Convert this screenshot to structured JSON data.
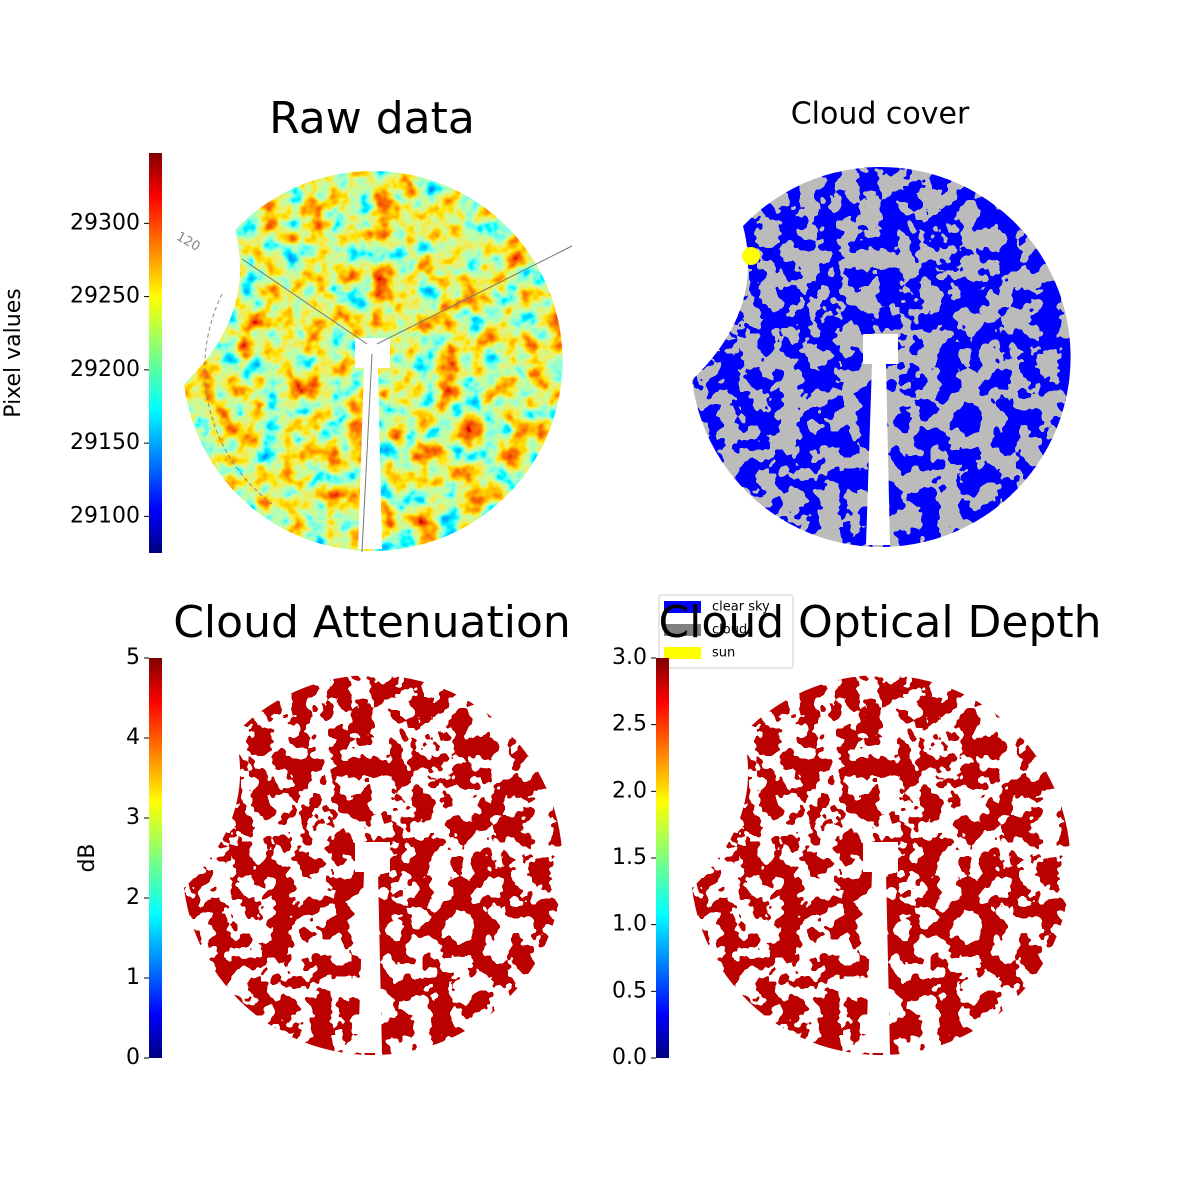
{
  "chart_data": [
    {
      "type": "image",
      "title": "Raw data",
      "colormap": "jet",
      "ylabel": "Pixel values",
      "ylim": [
        29075,
        29348
      ],
      "yticks": [
        29100,
        29150,
        29200,
        29250,
        29300
      ],
      "annotations": [
        "120"
      ]
    },
    {
      "type": "image",
      "title": "Cloud cover",
      "legend": [
        {
          "name": "clear sky",
          "color": "#0000ff"
        },
        {
          "name": "cloud",
          "color": "#808080"
        },
        {
          "name": "sun",
          "color": "#ffff00"
        }
      ]
    },
    {
      "type": "image",
      "title": "Cloud Attenuation",
      "colormap": "jet",
      "ylabel": "dB",
      "ylim": [
        0,
        5
      ],
      "yticks": [
        0,
        1,
        2,
        3,
        4,
        5
      ]
    },
    {
      "type": "image",
      "title": "Cloud Optical Depth",
      "colormap": "jet",
      "ylim": [
        0,
        3
      ],
      "yticks": [
        {
          "value": 0,
          "label": "0.0"
        },
        0.5,
        {
          "value": 1,
          "label": "1.0"
        },
        1.5,
        {
          "value": 2,
          "label": "2.0"
        },
        2.5,
        {
          "value": 3,
          "label": "3.0"
        }
      ]
    }
  ]
}
